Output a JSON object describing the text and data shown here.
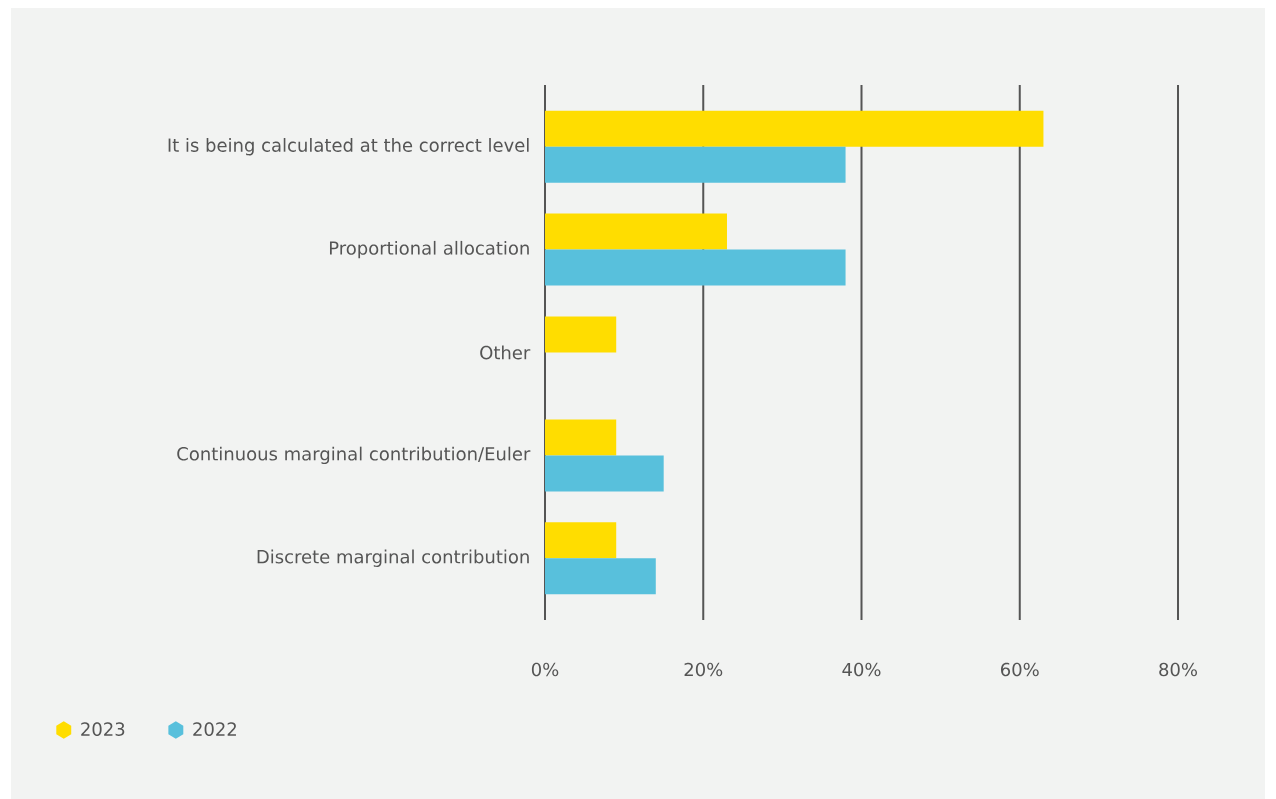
{
  "chart_data": {
    "type": "bar",
    "orientation": "horizontal",
    "categories": [
      "It is being calculated at the correct level",
      "Proportional allocation",
      "Other",
      "Continuous marginal contribution/Euler",
      "Discrete marginal contribution"
    ],
    "series": [
      {
        "name": "2023",
        "color": "#ffdd00",
        "values": [
          63,
          23,
          9,
          9,
          9
        ]
      },
      {
        "name": "2022",
        "color": "#58c0dc",
        "values": [
          38,
          38,
          null,
          15,
          14
        ]
      }
    ],
    "xlim": [
      0,
      80
    ],
    "xticks": [
      {
        "value": 0,
        "label": "0%"
      },
      {
        "value": 20,
        "label": "20%"
      },
      {
        "value": 40,
        "label": "40%"
      },
      {
        "value": 60,
        "label": "60%"
      },
      {
        "value": 80,
        "label": "80%"
      }
    ],
    "grid": "x",
    "legend": "bottom left"
  }
}
